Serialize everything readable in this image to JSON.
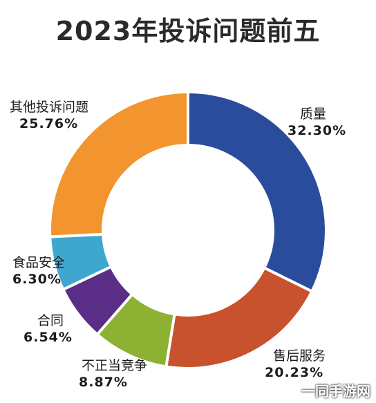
{
  "chart_data": {
    "type": "pie",
    "title": "2023年投诉问题前五",
    "categories": [
      "质量",
      "售后服务",
      "不正当竞争",
      "合同",
      "食品安全",
      "其他投诉问题"
    ],
    "values": [
      32.3,
      20.23,
      8.87,
      6.54,
      6.3,
      25.76
    ],
    "value_labels": [
      "32.30%",
      "20.23%",
      "8.87%",
      "6.54%",
      "6.30%",
      "25.76%"
    ],
    "colors": [
      "#2a4c9c",
      "#c8522e",
      "#8cb133",
      "#5a2e87",
      "#3ea7cf",
      "#f2952e"
    ],
    "donut": true,
    "start": "12 o'clock, clockwise",
    "legend": "none (labels beside slices)"
  },
  "watermark": "一同手游网"
}
